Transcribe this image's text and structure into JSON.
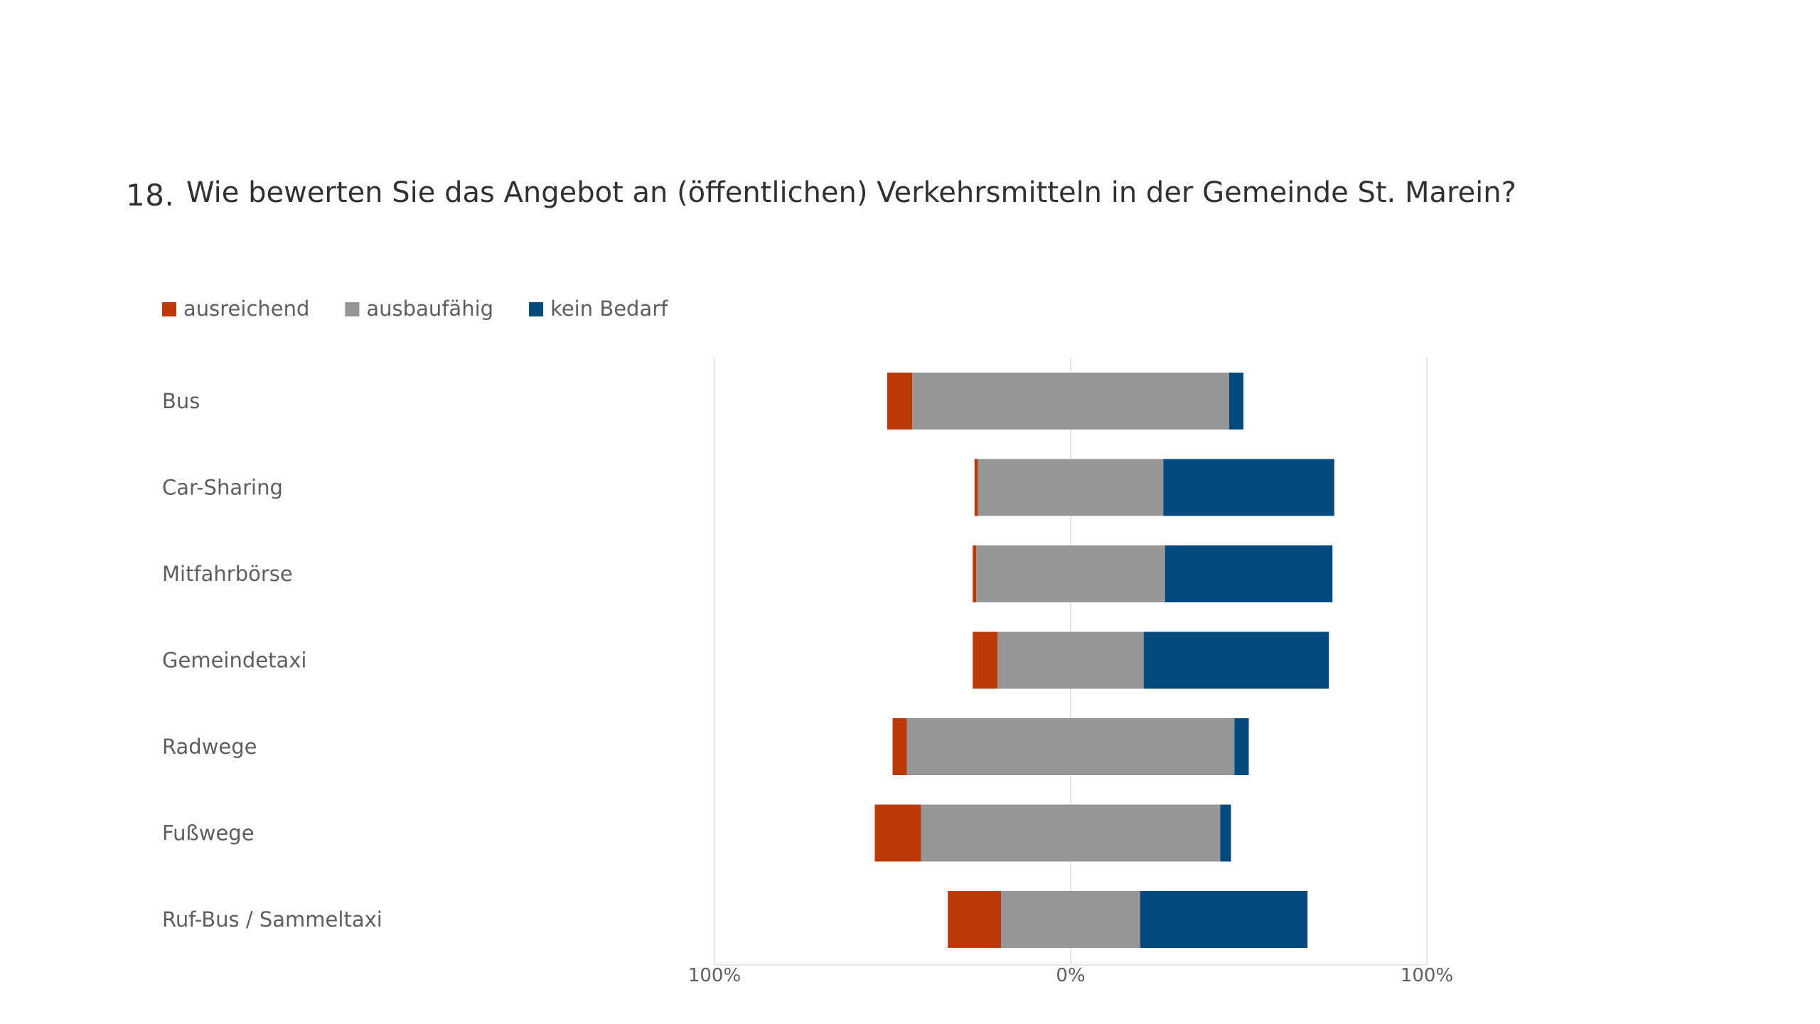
{
  "question": {
    "number": "18.",
    "title": "Wie bewerten Sie das Angebot an (öffentlichen) Verkehrsmitteln in der Gemeinde St. Marein?"
  },
  "chart_data": {
    "type": "bar",
    "orientation": "horizontal",
    "stacking": "diverging",
    "categories": [
      "Bus",
      "Car-Sharing",
      "Mitfahrbörse",
      "Gemeindetaxi",
      "Radwege",
      "Fußwege",
      "Ruf-Bus / Sammeltaxi"
    ],
    "series": [
      {
        "name": "ausreichend",
        "color": "#bd3a08",
        "values": [
          7,
          1,
          1,
          7,
          4,
          13,
          15
        ]
      },
      {
        "name": "ausbaufähig",
        "color": "#969696",
        "values": [
          89,
          52,
          53,
          41,
          92,
          84,
          39
        ]
      },
      {
        "name": "kein Bedarf",
        "color": "#004a80",
        "values": [
          4,
          48,
          47,
          52,
          4,
          3,
          47
        ]
      }
    ],
    "xlim": [
      -100,
      100
    ],
    "tick_labels": [
      "100%",
      "0%",
      "100%"
    ],
    "grid": true,
    "legend_position": "top-left"
  }
}
